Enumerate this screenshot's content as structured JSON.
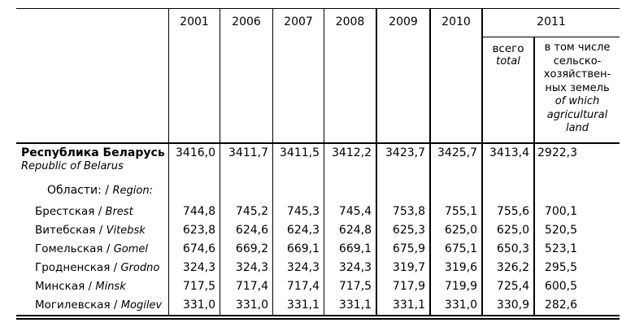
{
  "colors": {
    "background": "#ffffff",
    "text": "#000000",
    "border": "#000000"
  },
  "table": {
    "sep": " / ",
    "columns": {
      "years": [
        "2001",
        "2006",
        "2007",
        "2008",
        "2009",
        "2010"
      ],
      "year_2011": "2011",
      "sub_total_ru": "всего",
      "sub_total_en": "total",
      "sub_agri_ru_lines": [
        "в том числе",
        "сельско-",
        "хозяйствен-",
        "ных земель"
      ],
      "sub_agri_en_lines": [
        "of which",
        "agricultural",
        "land"
      ]
    },
    "rows": [
      {
        "type": "total",
        "ru": "Республика Беларусь",
        "en": "Republic of Belarus",
        "values": [
          "3416,0",
          "3411,7",
          "3411,5",
          "3412,2",
          "3423,7",
          "3425,7",
          "3413,4",
          "2922,3"
        ]
      },
      {
        "type": "section",
        "ru": "Области:",
        "en": "Region:",
        "values": []
      },
      {
        "type": "region",
        "ru": "Брестская",
        "en": "Brest",
        "values": [
          "744,8",
          "745,2",
          "745,3",
          "745,4",
          "753,8",
          "755,1",
          "755,6",
          "700,1"
        ]
      },
      {
        "type": "region",
        "ru": "Витебская",
        "en": "Vitebsk",
        "values": [
          "623,8",
          "624,6",
          "624,3",
          "624,8",
          "625,3",
          "625,0",
          "625,0",
          "520,5"
        ]
      },
      {
        "type": "region",
        "ru": "Гомельская",
        "en": "Gomel",
        "values": [
          "674,6",
          "669,2",
          "669,1",
          "669,1",
          "675,9",
          "675,1",
          "650,3",
          "523,1"
        ]
      },
      {
        "type": "region",
        "ru": "Гродненская",
        "en": "Grodno",
        "values": [
          "324,3",
          "324,3",
          "324,3",
          "324,3",
          "319,7",
          "319,6",
          "326,2",
          "295,5"
        ]
      },
      {
        "type": "region",
        "ru": "Минская",
        "en": "Minsk",
        "values": [
          "717,5",
          "717,4",
          "717,4",
          "717,5",
          "717,9",
          "719,9",
          "725,4",
          "600,5"
        ]
      },
      {
        "type": "region",
        "ru": "Могилевская",
        "en": "Mogilev",
        "values": [
          "331,0",
          "331,0",
          "331,1",
          "331,1",
          "331,1",
          "331,0",
          "330,9",
          "282,6"
        ]
      }
    ]
  }
}
